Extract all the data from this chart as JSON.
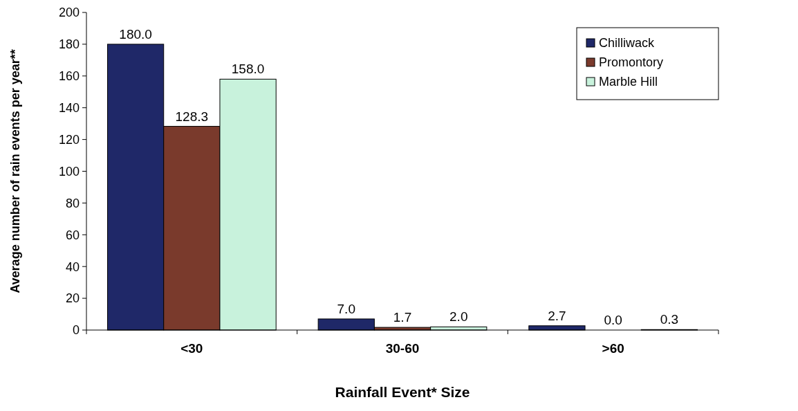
{
  "chart_data": {
    "type": "bar",
    "xlabel": "Rainfall Event* Size",
    "ylabel": "Average number of rain events per year**",
    "categories": [
      "<30",
      "30-60",
      ">60"
    ],
    "series": [
      {
        "name": "Chilliwack",
        "color": "#1f2868",
        "values": [
          180.0,
          7.0,
          2.7
        ],
        "value_labels": [
          "180.0",
          "7.0",
          "2.7"
        ]
      },
      {
        "name": "Promontory",
        "color": "#7a3a2c",
        "values": [
          128.3,
          1.7,
          0.0
        ],
        "value_labels": [
          "128.3",
          "1.7",
          "0.0"
        ]
      },
      {
        "name": "Marble Hill",
        "color": "#c8f2dc",
        "values": [
          158.0,
          2.0,
          0.3
        ],
        "value_labels": [
          "158.0",
          "2.0",
          "0.3"
        ]
      }
    ],
    "ylim": [
      0,
      200
    ],
    "yticks": [
      0,
      20,
      40,
      60,
      80,
      100,
      120,
      140,
      160,
      180,
      200
    ],
    "legend": "top right",
    "grid": false
  }
}
